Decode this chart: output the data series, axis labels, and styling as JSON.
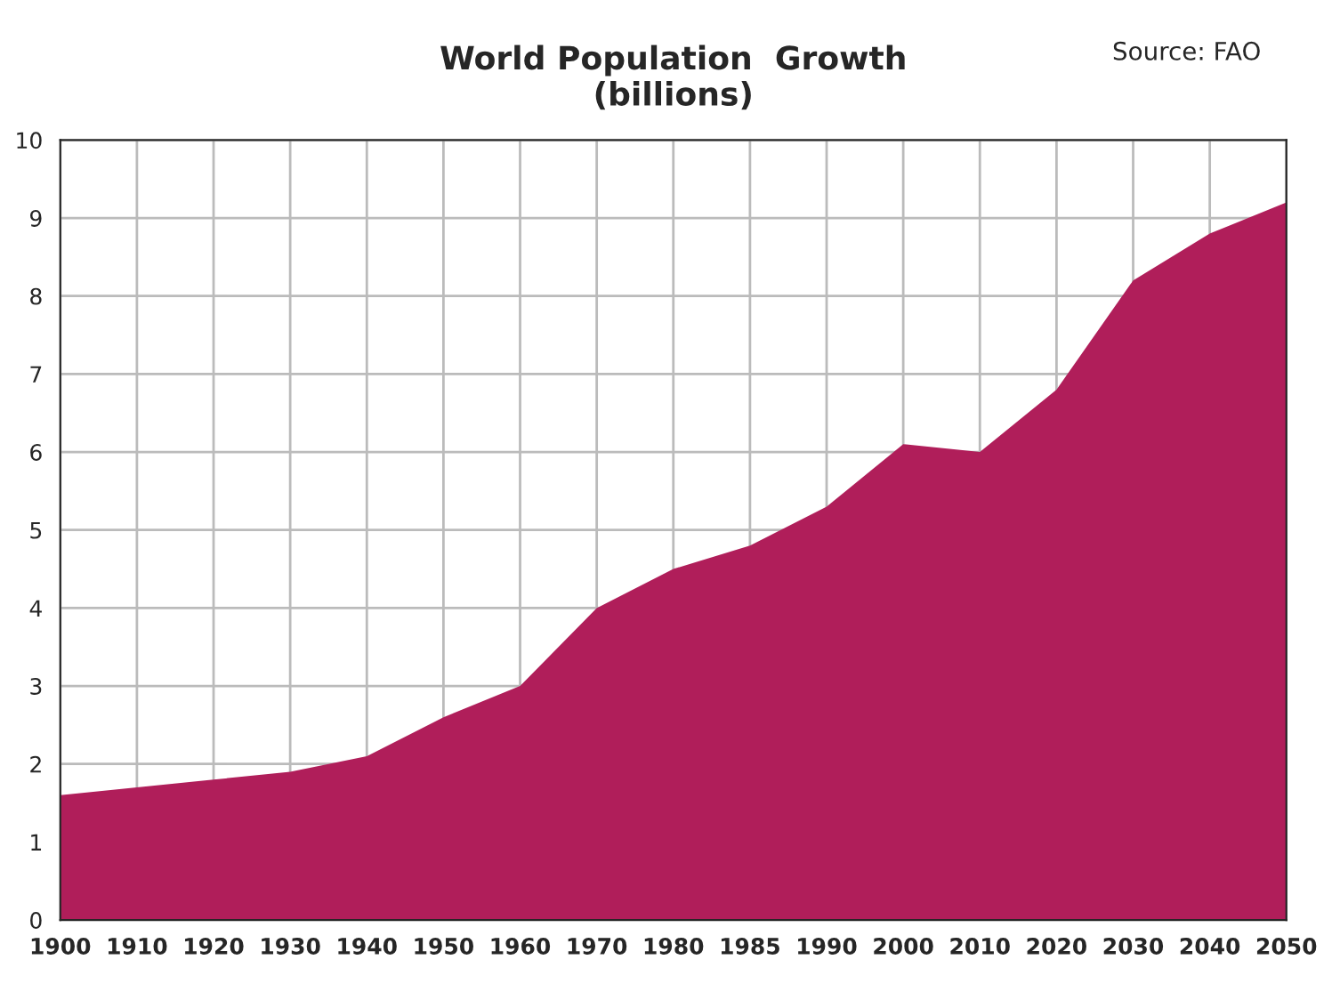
{
  "chart_data": {
    "type": "area",
    "title": "World Population  Growth\n(billions)",
    "annotations": [
      "Source: FAO"
    ],
    "categories": [
      "1900",
      "1910",
      "1920",
      "1930",
      "1940",
      "1950",
      "1960",
      "1970",
      "1980",
      "1985",
      "1990",
      "2000",
      "2010",
      "2020",
      "2030",
      "2040",
      "2050"
    ],
    "series": [
      {
        "color": "#b01e5a",
        "values": [
          1.6,
          1.7,
          1.8,
          1.9,
          2.1,
          2.6,
          3.0,
          4.0,
          4.5,
          4.8,
          5.3,
          6.1,
          6.0,
          6.8,
          8.2,
          8.8,
          9.2
        ]
      }
    ],
    "ylim": [
      0,
      10
    ],
    "yticks": [
      0,
      1,
      2,
      3,
      4,
      5,
      6,
      7,
      8,
      9,
      10
    ],
    "grid": true,
    "legend": false
  }
}
